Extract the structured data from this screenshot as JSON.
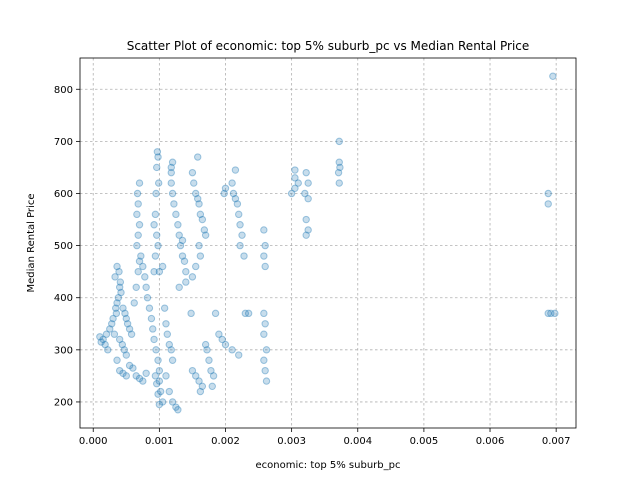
{
  "chart_data": {
    "type": "scatter",
    "title": "Scatter Plot of economic: top 5% suburb_pc vs Median Rental Price",
    "xlabel": "economic: top 5% suburb_pc",
    "ylabel": "Median Rental Price",
    "xlim": [
      -0.0002,
      0.0073
    ],
    "ylim": [
      150,
      860
    ],
    "xticks": [
      0.0,
      0.001,
      0.002,
      0.003,
      0.004,
      0.005,
      0.006,
      0.007
    ],
    "xtick_labels": [
      "0.000",
      "0.001",
      "0.002",
      "0.003",
      "0.004",
      "0.005",
      "0.006",
      "0.007"
    ],
    "yticks": [
      200,
      300,
      400,
      500,
      600,
      700,
      800
    ],
    "ytick_labels": [
      "200",
      "300",
      "400",
      "500",
      "600",
      "700",
      "800"
    ],
    "grid": true,
    "marker_color": "#1f77b4",
    "marker_alpha": 0.25,
    "series": [
      {
        "name": "Median Rental Price",
        "points": [
          [
            0.00015,
            320
          ],
          [
            0.0002,
            330
          ],
          [
            0.00018,
            310
          ],
          [
            0.00022,
            300
          ],
          [
            0.00025,
            340
          ],
          [
            0.0001,
            325
          ],
          [
            0.00012,
            315
          ],
          [
            0.00028,
            350
          ],
          [
            0.0003,
            360
          ],
          [
            0.00032,
            330
          ],
          [
            0.00035,
            370
          ],
          [
            0.00034,
            380
          ],
          [
            0.00036,
            390
          ],
          [
            0.00038,
            400
          ],
          [
            0.0004,
            420
          ],
          [
            0.00042,
            410
          ],
          [
            0.00033,
            440
          ],
          [
            0.00036,
            460
          ],
          [
            0.00039,
            450
          ],
          [
            0.00041,
            430
          ],
          [
            0.00045,
            380
          ],
          [
            0.00048,
            370
          ],
          [
            0.0005,
            360
          ],
          [
            0.00052,
            350
          ],
          [
            0.00055,
            340
          ],
          [
            0.00058,
            330
          ],
          [
            0.0004,
            320
          ],
          [
            0.00044,
            310
          ],
          [
            0.00047,
            300
          ],
          [
            0.0005,
            290
          ],
          [
            0.00036,
            280
          ],
          [
            0.0004,
            260
          ],
          [
            0.00045,
            255
          ],
          [
            0.0005,
            250
          ],
          [
            0.00055,
            270
          ],
          [
            0.0006,
            265
          ],
          [
            0.00065,
            250
          ],
          [
            0.0007,
            245
          ],
          [
            0.00075,
            240
          ],
          [
            0.0008,
            255
          ],
          [
            0.00062,
            390
          ],
          [
            0.00065,
            420
          ],
          [
            0.00068,
            450
          ],
          [
            0.0007,
            470
          ],
          [
            0.00066,
            500
          ],
          [
            0.00068,
            520
          ],
          [
            0.0007,
            540
          ],
          [
            0.00066,
            560
          ],
          [
            0.00068,
            580
          ],
          [
            0.0007,
            620
          ],
          [
            0.00067,
            600
          ],
          [
            0.00072,
            480
          ],
          [
            0.00075,
            460
          ],
          [
            0.00078,
            440
          ],
          [
            0.0008,
            420
          ],
          [
            0.00082,
            400
          ],
          [
            0.00085,
            380
          ],
          [
            0.00088,
            360
          ],
          [
            0.0009,
            340
          ],
          [
            0.00092,
            320
          ],
          [
            0.00095,
            300
          ],
          [
            0.00098,
            280
          ],
          [
            0.001,
            260
          ],
          [
            0.001,
            240
          ],
          [
            0.00102,
            220
          ],
          [
            0.00105,
            200
          ],
          [
            0.001,
            195
          ],
          [
            0.00098,
            215
          ],
          [
            0.00096,
            235
          ],
          [
            0.00094,
            250
          ],
          [
            0.00097,
            680
          ],
          [
            0.00098,
            670
          ],
          [
            0.00096,
            650
          ],
          [
            0.00099,
            620
          ],
          [
            0.00095,
            600
          ],
          [
            0.00094,
            560
          ],
          [
            0.00092,
            540
          ],
          [
            0.00096,
            520
          ],
          [
            0.00098,
            500
          ],
          [
            0.00094,
            480
          ],
          [
            0.00092,
            450
          ],
          [
            0.001,
            450
          ],
          [
            0.00105,
            460
          ],
          [
            0.00108,
            380
          ],
          [
            0.0011,
            350
          ],
          [
            0.00112,
            330
          ],
          [
            0.00115,
            310
          ],
          [
            0.00118,
            300
          ],
          [
            0.0012,
            280
          ],
          [
            0.0011,
            250
          ],
          [
            0.00115,
            220
          ],
          [
            0.0012,
            200
          ],
          [
            0.00125,
            190
          ],
          [
            0.00128,
            185
          ],
          [
            0.00118,
            620
          ],
          [
            0.0012,
            600
          ],
          [
            0.00118,
            640
          ],
          [
            0.0012,
            660
          ],
          [
            0.00118,
            650
          ],
          [
            0.00122,
            580
          ],
          [
            0.00125,
            560
          ],
          [
            0.00128,
            540
          ],
          [
            0.0013,
            520
          ],
          [
            0.00132,
            500
          ],
          [
            0.00135,
            480
          ],
          [
            0.00138,
            470
          ],
          [
            0.0014,
            450
          ],
          [
            0.0014,
            430
          ],
          [
            0.00135,
            510
          ],
          [
            0.0013,
            420
          ],
          [
            0.0015,
            640
          ],
          [
            0.00152,
            620
          ],
          [
            0.00155,
            600
          ],
          [
            0.00158,
            590
          ],
          [
            0.0016,
            580
          ],
          [
            0.00162,
            560
          ],
          [
            0.00165,
            550
          ],
          [
            0.00168,
            530
          ],
          [
            0.0017,
            520
          ],
          [
            0.00158,
            670
          ],
          [
            0.0016,
            500
          ],
          [
            0.00162,
            480
          ],
          [
            0.00155,
            460
          ],
          [
            0.0015,
            440
          ],
          [
            0.00148,
            370
          ],
          [
            0.0015,
            260
          ],
          [
            0.00155,
            250
          ],
          [
            0.0016,
            240
          ],
          [
            0.00165,
            230
          ],
          [
            0.00162,
            220
          ],
          [
            0.0017,
            310
          ],
          [
            0.00172,
            300
          ],
          [
            0.00175,
            280
          ],
          [
            0.00178,
            260
          ],
          [
            0.00182,
            250
          ],
          [
            0.0018,
            230
          ],
          [
            0.00185,
            370
          ],
          [
            0.0019,
            330
          ],
          [
            0.00195,
            320
          ],
          [
            0.002,
            310
          ],
          [
            0.0021,
            300
          ],
          [
            0.0022,
            290
          ],
          [
            0.00198,
            600
          ],
          [
            0.002,
            610
          ],
          [
            0.0021,
            620
          ],
          [
            0.00212,
            600
          ],
          [
            0.00215,
            590
          ],
          [
            0.00218,
            580
          ],
          [
            0.0022,
            560
          ],
          [
            0.00222,
            540
          ],
          [
            0.00225,
            520
          ],
          [
            0.00222,
            500
          ],
          [
            0.00228,
            480
          ],
          [
            0.00215,
            645
          ],
          [
            0.0023,
            370
          ],
          [
            0.00235,
            370
          ],
          [
            0.00258,
            530
          ],
          [
            0.0026,
            500
          ],
          [
            0.00258,
            480
          ],
          [
            0.0026,
            460
          ],
          [
            0.00258,
            370
          ],
          [
            0.0026,
            350
          ],
          [
            0.00258,
            330
          ],
          [
            0.00262,
            300
          ],
          [
            0.00258,
            280
          ],
          [
            0.0026,
            260
          ],
          [
            0.00262,
            240
          ],
          [
            0.00305,
            645
          ],
          [
            0.00305,
            630
          ],
          [
            0.0031,
            620
          ],
          [
            0.003,
            600
          ],
          [
            0.00305,
            610
          ],
          [
            0.00322,
            640
          ],
          [
            0.00325,
            620
          ],
          [
            0.0032,
            600
          ],
          [
            0.00325,
            590
          ],
          [
            0.00322,
            550
          ],
          [
            0.00325,
            530
          ],
          [
            0.00322,
            520
          ],
          [
            0.00372,
            700
          ],
          [
            0.00372,
            660
          ],
          [
            0.00373,
            650
          ],
          [
            0.00371,
            640
          ],
          [
            0.00372,
            620
          ],
          [
            0.00688,
            600
          ],
          [
            0.00688,
            580
          ],
          [
            0.00688,
            370
          ],
          [
            0.00692,
            370
          ],
          [
            0.00698,
            370
          ],
          [
            0.00695,
            825
          ]
        ]
      }
    ]
  }
}
